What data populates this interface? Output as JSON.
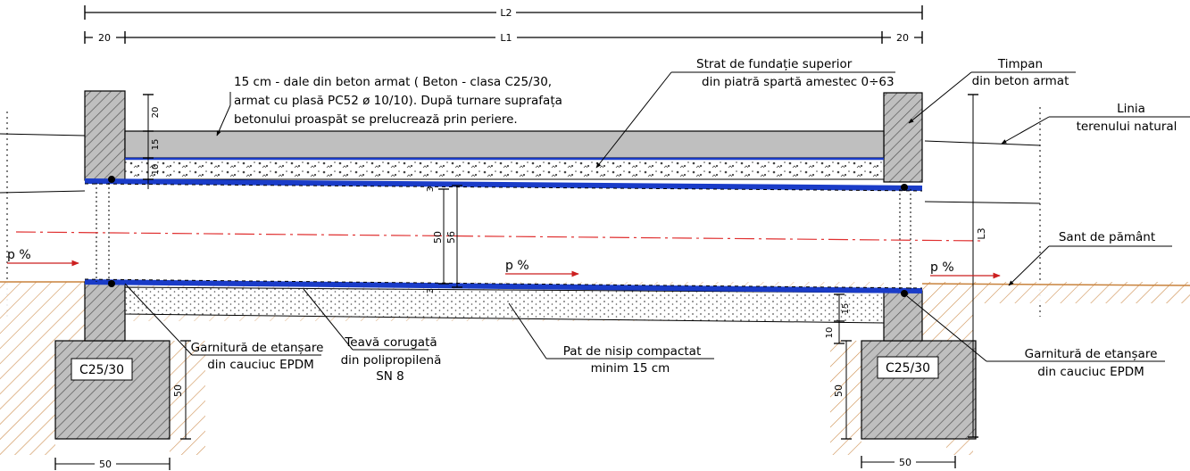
{
  "dimensions": {
    "l2": "L2",
    "l1": "L1",
    "l3": "L3",
    "end_left": "20",
    "end_right": "20",
    "slab_20": "20",
    "slab_15": "15",
    "layer_10": "10",
    "wall_3_top": "3",
    "wall_3_bottom": "3",
    "inner_diameter": "50",
    "outer_diameter": "56",
    "bed_15": "15",
    "bed_10": "10",
    "found_height_left": "50",
    "found_height_right": "50",
    "found_width_left": "50",
    "found_width_right": "50"
  },
  "labels": {
    "slab_note_line1": "15 cm - dale din beton armat ( Beton - clasa C25/30,",
    "slab_note_line2": "armat cu plasă PC52 ø 10/10). După turnare suprafața",
    "slab_note_line3": "betonului proaspăt se prelucrează prin periere.",
    "base_course_line1": "Strat de fundație superior",
    "base_course_line2": "din piatră spartă amestec 0÷63",
    "headwall_line1": "Timpan",
    "headwall_line2": "din beton armat",
    "ground_line1": "Linia",
    "ground_line2": "terenului natural",
    "ditch": "Sant de pământ",
    "slope_left": "p %",
    "slope_center": "p %",
    "slope_right": "p %",
    "concrete_class_left": "C25/30",
    "concrete_class_right": "C25/30",
    "gasket_left_line1": "Garnitură de etanșare",
    "gasket_left_line2": "din cauciuc EPDM",
    "pipe_line1": "Teavă corugată",
    "pipe_line2": "din polipropilenă",
    "pipe_line3": "SN 8",
    "sand_bed_line1": "Pat de nisip compactat",
    "sand_bed_line2": "minim 15 cm",
    "gasket_right_line1": "Garnitură de etanșare",
    "gasket_right_line2": "din cauciuc EPDM"
  },
  "colors": {
    "line": "#000000",
    "concrete": "#bfbfbf",
    "pipe_wall": "#1a3cc8",
    "slope_arrow": "#cc1f1f",
    "axis": "#e03030",
    "soil": "#c8823c"
  }
}
